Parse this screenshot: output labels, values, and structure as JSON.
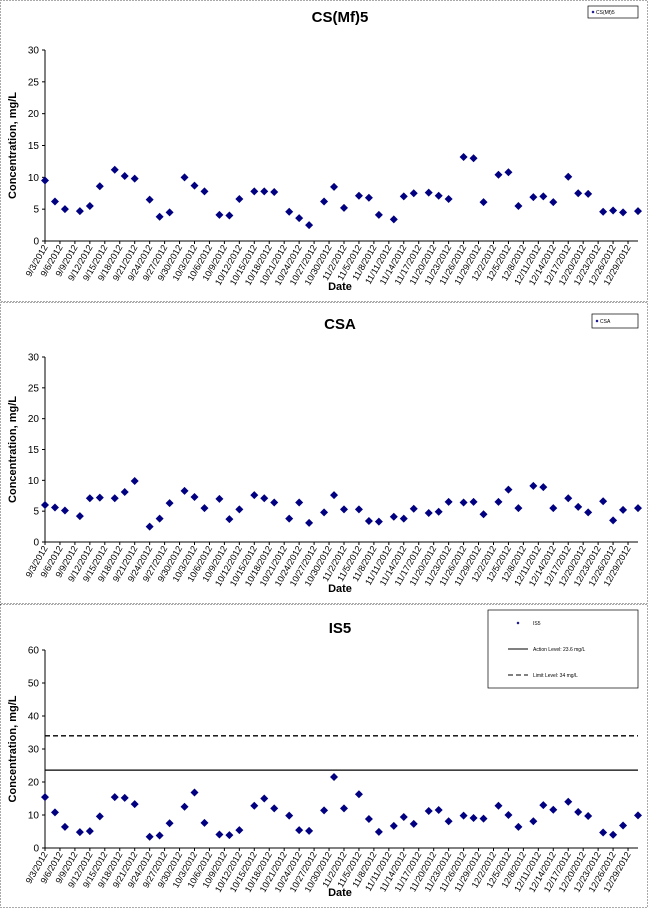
{
  "chart_data": [
    {
      "type": "scatter",
      "title": "CS(Mf)5",
      "x_label": "Date",
      "y_label": "Concentration, mg/L",
      "x": [
        "9/3/2012",
        "9/5/2012",
        "9/7/2012",
        "9/10/2012",
        "9/12/2012",
        "9/14/2012",
        "9/17/2012",
        "9/19/2012",
        "9/21/2012",
        "9/24/2012",
        "9/26/2012",
        "9/28/2012",
        "10/1/2012",
        "10/3/2012",
        "10/5/2012",
        "10/8/2012",
        "10/10/2012",
        "10/12/2012",
        "10/15/2012",
        "10/17/2012",
        "10/19/2012",
        "10/22/2012",
        "10/24/2012",
        "10/26/2012",
        "10/29/2012",
        "10/31/2012",
        "11/2/2012",
        "11/5/2012",
        "11/7/2012",
        "11/9/2012",
        "11/12/2012",
        "11/14/2012",
        "11/16/2012",
        "11/19/2012",
        "11/21/2012",
        "11/23/2012",
        "11/26/2012",
        "11/28/2012",
        "11/30/2012",
        "12/3/2012",
        "12/5/2012",
        "12/7/2012",
        "12/10/2012",
        "12/12/2012",
        "12/14/2012",
        "12/17/2012",
        "12/19/2012",
        "12/21/2012",
        "12/24/2012",
        "12/26/2012",
        "12/28/2012",
        "12/31/2012"
      ],
      "series": [
        {
          "name": "CS(Mf)5",
          "color": "#000080",
          "values": [
            9.5,
            6.2,
            5,
            4.7,
            5.5,
            8.6,
            11.2,
            10.2,
            9.8,
            6.5,
            3.8,
            4.5,
            10,
            8.7,
            7.8,
            4.1,
            4,
            6.6,
            7.8,
            7.8,
            7.7,
            4.6,
            3.6,
            2.5,
            6.2,
            8.5,
            5.2,
            7.1,
            6.8,
            4.1,
            3.4,
            7,
            7.5,
            7.6,
            7.1,
            6.6,
            13.2,
            13,
            6.1,
            10.4,
            10.8,
            5.5,
            6.9,
            7,
            6.1,
            10.1,
            7.5,
            7.4,
            4.6,
            4.8,
            4.5,
            4.7
          ]
        }
      ],
      "xlim": [
        "9/3/2012",
        "12/31/2012"
      ],
      "xticks": [
        "9/3/2012",
        "9/6/2012",
        "9/9/2012",
        "9/12/2012",
        "9/15/2012",
        "9/18/2012",
        "9/21/2012",
        "9/24/2012",
        "9/27/2012",
        "9/30/2012",
        "10/3/2012",
        "10/6/2012",
        "10/9/2012",
        "10/12/2012",
        "10/15/2012",
        "10/18/2012",
        "10/21/2012",
        "10/24/2012",
        "10/27/2012",
        "10/30/2012",
        "11/2/2012",
        "11/5/2012",
        "11/8/2012",
        "11/11/2012",
        "11/14/2012",
        "11/17/2012",
        "11/20/2012",
        "11/23/2012",
        "11/26/2012",
        "11/29/2012",
        "12/2/2012",
        "12/5/2012",
        "12/8/2012",
        "12/11/2012",
        "12/14/2012",
        "12/17/2012",
        "12/20/2012",
        "12/23/2012",
        "12/26/2012",
        "12/29/2012"
      ],
      "ylim": [
        0,
        30
      ],
      "yticks": [
        0,
        5,
        10,
        15,
        20,
        25,
        30
      ],
      "legend": "upper right"
    },
    {
      "type": "scatter",
      "title": "CSA",
      "x_label": "Date",
      "y_label": "Concentration, mg/L",
      "x": [
        "9/3/2012",
        "9/5/2012",
        "9/7/2012",
        "9/10/2012",
        "9/12/2012",
        "9/14/2012",
        "9/17/2012",
        "9/19/2012",
        "9/21/2012",
        "9/24/2012",
        "9/26/2012",
        "9/28/2012",
        "10/1/2012",
        "10/3/2012",
        "10/5/2012",
        "10/8/2012",
        "10/10/2012",
        "10/12/2012",
        "10/15/2012",
        "10/17/2012",
        "10/19/2012",
        "10/22/2012",
        "10/24/2012",
        "10/26/2012",
        "10/29/2012",
        "10/31/2012",
        "11/2/2012",
        "11/5/2012",
        "11/7/2012",
        "11/9/2012",
        "11/12/2012",
        "11/14/2012",
        "11/16/2012",
        "11/19/2012",
        "11/21/2012",
        "11/23/2012",
        "11/26/2012",
        "11/28/2012",
        "11/30/2012",
        "12/3/2012",
        "12/5/2012",
        "12/7/2012",
        "12/10/2012",
        "12/12/2012",
        "12/14/2012",
        "12/17/2012",
        "12/19/2012",
        "12/21/2012",
        "12/24/2012",
        "12/26/2012",
        "12/28/2012",
        "12/31/2012"
      ],
      "series": [
        {
          "name": "CSA",
          "color": "#000080",
          "values": [
            6,
            5.6,
            5.1,
            4.2,
            7.1,
            7.2,
            7.1,
            8.1,
            9.9,
            2.5,
            3.8,
            6.3,
            8.3,
            7.3,
            5.5,
            7,
            3.7,
            5.3,
            7.6,
            7.1,
            6.4,
            3.8,
            6.4,
            3.1,
            4.8,
            7.6,
            5.3,
            5.3,
            3.4,
            3.3,
            4.1,
            3.8,
            5.4,
            4.7,
            4.9,
            6.5,
            6.4,
            6.5,
            4.5,
            6.5,
            8.5,
            5.5,
            9.1,
            8.9,
            5.5,
            7.1,
            5.7,
            4.8,
            6.6,
            3.5,
            5.2,
            5.5
          ]
        }
      ],
      "xlim": [
        "9/3/2012",
        "12/31/2012"
      ],
      "xticks": [
        "9/3/2012",
        "9/6/2012",
        "9/9/2012",
        "9/12/2012",
        "9/15/2012",
        "9/18/2012",
        "9/21/2012",
        "9/24/2012",
        "9/27/2012",
        "9/30/2012",
        "10/3/2012",
        "10/6/2012",
        "10/9/2012",
        "10/12/2012",
        "10/15/2012",
        "10/18/2012",
        "10/21/2012",
        "10/24/2012",
        "10/27/2012",
        "10/30/2012",
        "11/2/2012",
        "11/5/2012",
        "11/8/2012",
        "11/11/2012",
        "11/14/2012",
        "11/17/2012",
        "11/20/2012",
        "11/23/2012",
        "11/26/2012",
        "11/29/2012",
        "12/2/2012",
        "12/5/2012",
        "12/8/2012",
        "12/11/2012",
        "12/14/2012",
        "12/17/2012",
        "12/20/2012",
        "12/23/2012",
        "12/26/2012",
        "12/29/2012"
      ],
      "ylim": [
        0,
        30
      ],
      "yticks": [
        0,
        5,
        10,
        15,
        20,
        25,
        30
      ],
      "legend": "upper right"
    },
    {
      "type": "scatter",
      "title": "IS5",
      "x_label": "Date",
      "y_label": "Concentration, mg/L",
      "x": [
        "9/3/2012",
        "9/5/2012",
        "9/7/2012",
        "9/10/2012",
        "9/12/2012",
        "9/14/2012",
        "9/17/2012",
        "9/19/2012",
        "9/21/2012",
        "9/24/2012",
        "9/26/2012",
        "9/28/2012",
        "10/1/2012",
        "10/3/2012",
        "10/5/2012",
        "10/8/2012",
        "10/10/2012",
        "10/12/2012",
        "10/15/2012",
        "10/17/2012",
        "10/19/2012",
        "10/22/2012",
        "10/24/2012",
        "10/26/2012",
        "10/29/2012",
        "10/31/2012",
        "11/2/2012",
        "11/5/2012",
        "11/7/2012",
        "11/9/2012",
        "11/12/2012",
        "11/14/2012",
        "11/16/2012",
        "11/19/2012",
        "11/21/2012",
        "11/23/2012",
        "11/26/2012",
        "11/28/2012",
        "11/30/2012",
        "12/3/2012",
        "12/5/2012",
        "12/7/2012",
        "12/10/2012",
        "12/12/2012",
        "12/14/2012",
        "12/17/2012",
        "12/19/2012",
        "12/21/2012",
        "12/24/2012",
        "12/26/2012",
        "12/28/2012",
        "12/31/2012"
      ],
      "series": [
        {
          "name": "IS5",
          "color": "#000080",
          "values": [
            15.4,
            10.8,
            6.4,
            4.8,
            5.1,
            9.6,
            15.4,
            15.2,
            13.3,
            3.4,
            3.8,
            7.5,
            12.5,
            16.8,
            7.6,
            4.1,
            3.9,
            5.4,
            12.8,
            15,
            12,
            9.8,
            5.4,
            5.2,
            11.4,
            21.5,
            12,
            16.3,
            8.8,
            4.9,
            6.7,
            9.4,
            7.3,
            11.2,
            11.5,
            8.1,
            9.8,
            9.1,
            8.9,
            12.8,
            10,
            6.4,
            8.1,
            13,
            11.6,
            14,
            10.9,
            9.7,
            4.7,
            4,
            6.8,
            9.9
          ]
        }
      ],
      "reference_lines": [
        {
          "name": "Action Level: 23.6 mg/L",
          "value": 23.6,
          "style": "solid"
        },
        {
          "name": "Limit Level: 34 mg/L",
          "value": 34,
          "style": "dashed"
        }
      ],
      "xlim": [
        "9/3/2012",
        "12/31/2012"
      ],
      "xticks": [
        "9/3/2012",
        "9/6/2012",
        "9/9/2012",
        "9/12/2012",
        "9/15/2012",
        "9/18/2012",
        "9/21/2012",
        "9/24/2012",
        "9/27/2012",
        "9/30/2012",
        "10/3/2012",
        "10/6/2012",
        "10/9/2012",
        "10/12/2012",
        "10/15/2012",
        "10/18/2012",
        "10/21/2012",
        "10/24/2012",
        "10/27/2012",
        "10/30/2012",
        "11/2/2012",
        "11/5/2012",
        "11/8/2012",
        "11/11/2012",
        "11/14/2012",
        "11/17/2012",
        "11/20/2012",
        "11/23/2012",
        "11/26/2012",
        "11/29/2012",
        "12/2/2012",
        "12/5/2012",
        "12/8/2012",
        "12/11/2012",
        "12/14/2012",
        "12/17/2012",
        "12/20/2012",
        "12/23/2012",
        "12/26/2012",
        "12/29/2012"
      ],
      "ylim": [
        0,
        60
      ],
      "yticks": [
        0,
        10,
        20,
        30,
        40,
        50,
        60
      ],
      "legend": "upper right"
    }
  ]
}
